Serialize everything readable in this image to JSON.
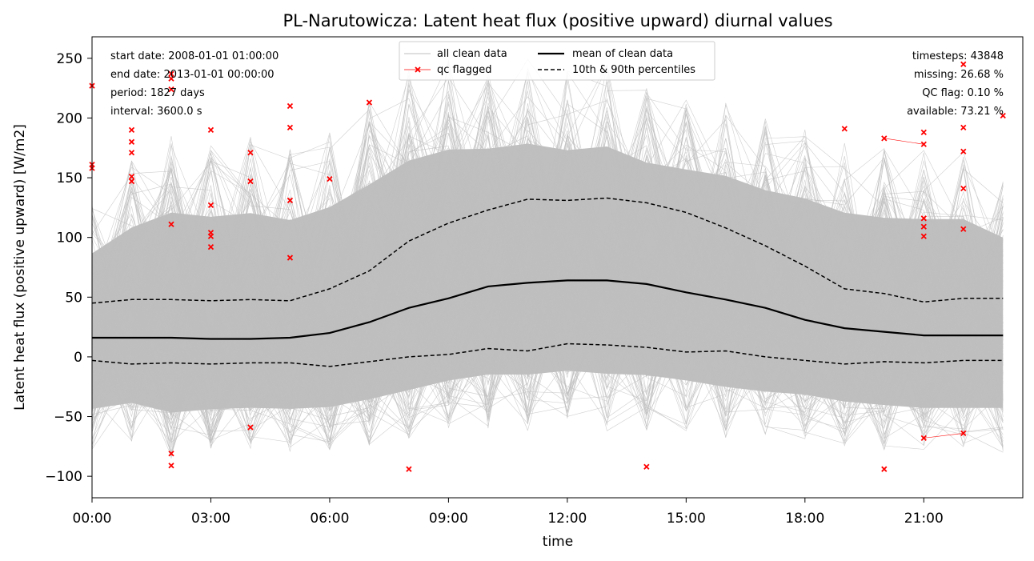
{
  "chart_data": {
    "type": "line",
    "title": "PL-Narutowicza: Latent heat flux (positive upward) diurnal values",
    "xlabel": "time",
    "ylabel": "Latent heat flux (positive upward) [W/m2]",
    "xlim": [
      0,
      23.5
    ],
    "ylim": [
      -118,
      268
    ],
    "x_ticks": [
      {
        "value": 0,
        "label": "00:00"
      },
      {
        "value": 3,
        "label": "03:00"
      },
      {
        "value": 6,
        "label": "06:00"
      },
      {
        "value": 9,
        "label": "09:00"
      },
      {
        "value": 12,
        "label": "12:00"
      },
      {
        "value": 15,
        "label": "15:00"
      },
      {
        "value": 18,
        "label": "18:00"
      },
      {
        "value": 21,
        "label": "21:00"
      }
    ],
    "y_ticks": [
      {
        "value": 250,
        "label": "250"
      },
      {
        "value": 200,
        "label": "200"
      },
      {
        "value": 150,
        "label": "150"
      },
      {
        "value": 100,
        "label": "100"
      },
      {
        "value": 50,
        "label": "50"
      },
      {
        "value": 0,
        "label": "0"
      },
      {
        "value": -50,
        "label": "−50"
      },
      {
        "value": -100,
        "label": "−100"
      }
    ],
    "hours": [
      0,
      1,
      2,
      3,
      4,
      5,
      6,
      7,
      8,
      9,
      10,
      11,
      12,
      13,
      14,
      15,
      16,
      17,
      18,
      19,
      20,
      21,
      22,
      23
    ],
    "series": [
      {
        "name": "mean of clean data",
        "color": "#000000",
        "style": "solid",
        "values": [
          16,
          16,
          16,
          15,
          15,
          16,
          20,
          29,
          41,
          49,
          59,
          62,
          64,
          64,
          61,
          54,
          48,
          41,
          31,
          24,
          21,
          18,
          18,
          18
        ]
      },
      {
        "name": "10th & 90th percentiles",
        "color": "#000000",
        "style": "dashed",
        "values": [
          45,
          48,
          48,
          47,
          48,
          47,
          57,
          72,
          97,
          112,
          123,
          132,
          131,
          133,
          129,
          121,
          108,
          93,
          76,
          57,
          53,
          46,
          49,
          49
        ]
      },
      {
        "name": "10th & 90th percentiles",
        "color": "#000000",
        "style": "dashed",
        "values": [
          -3,
          -6,
          -5,
          -6,
          -5,
          -5,
          -8,
          -4,
          0,
          2,
          7,
          5,
          11,
          10,
          8,
          4,
          5,
          0,
          -3,
          -6,
          -4,
          -5,
          -3,
          -3
        ]
      }
    ],
    "clean_data_band": {
      "color": "#bfbfbf",
      "low": [
        -80,
        -72,
        -85,
        -80,
        -78,
        -80,
        -80,
        -75,
        -70,
        -62,
        -60,
        -62,
        -58,
        -62,
        -62,
        -65,
        -70,
        -72,
        -70,
        -75,
        -78,
        -80,
        -80,
        -80
      ],
      "high": [
        130,
        165,
        185,
        180,
        185,
        175,
        190,
        215,
        240,
        250,
        245,
        250,
        240,
        245,
        225,
        220,
        215,
        200,
        195,
        180,
        175,
        175,
        175,
        150
      ]
    },
    "qc_flagged": {
      "name": "qc flagged",
      "color": "#ff0000",
      "points": [
        [
          0,
          227
        ],
        [
          0,
          161
        ],
        [
          0,
          158
        ],
        [
          1,
          190
        ],
        [
          1,
          180
        ],
        [
          1,
          171
        ],
        [
          1,
          151
        ],
        [
          1,
          147
        ],
        [
          2,
          237
        ],
        [
          2,
          233
        ],
        [
          2,
          224
        ],
        [
          2,
          111
        ],
        [
          2,
          -81
        ],
        [
          2,
          -91
        ],
        [
          3,
          190
        ],
        [
          3,
          127
        ],
        [
          3,
          104
        ],
        [
          3,
          101
        ],
        [
          3,
          92
        ],
        [
          4,
          171
        ],
        [
          4,
          147
        ],
        [
          4,
          -59
        ],
        [
          5,
          210
        ],
        [
          5,
          192
        ],
        [
          5,
          131
        ],
        [
          5,
          83
        ],
        [
          6,
          149
        ],
        [
          7,
          213
        ],
        [
          8,
          -94
        ],
        [
          14,
          -92
        ],
        [
          19,
          191
        ],
        [
          20,
          183
        ],
        [
          20,
          -94
        ],
        [
          21,
          188
        ],
        [
          21,
          178
        ],
        [
          21,
          116
        ],
        [
          21,
          109
        ],
        [
          21,
          101
        ],
        [
          21,
          -68
        ],
        [
          22,
          245
        ],
        [
          22,
          192
        ],
        [
          22,
          172
        ],
        [
          22,
          141
        ],
        [
          22,
          107
        ],
        [
          22,
          -64
        ],
        [
          23,
          202
        ]
      ],
      "links": [
        [
          [
            20,
            183
          ],
          [
            21,
            178
          ]
        ],
        [
          [
            21,
            -68
          ],
          [
            22,
            -64
          ]
        ]
      ]
    },
    "legend": {
      "placement": "top-center",
      "entries": [
        "all clean data",
        "qc flagged",
        "mean of clean data",
        "10th & 90th percentiles"
      ]
    },
    "info_left": [
      "start date: 2008-01-01 01:00:00",
      "end date: 2013-01-01 00:00:00",
      "period: 1827 days",
      "interval: 3600.0 s"
    ],
    "info_right": [
      "timesteps: 43848",
      "missing: 26.68 %",
      "QC flag: 0.10 %",
      "available: 73.21 %"
    ],
    "grid": false
  }
}
